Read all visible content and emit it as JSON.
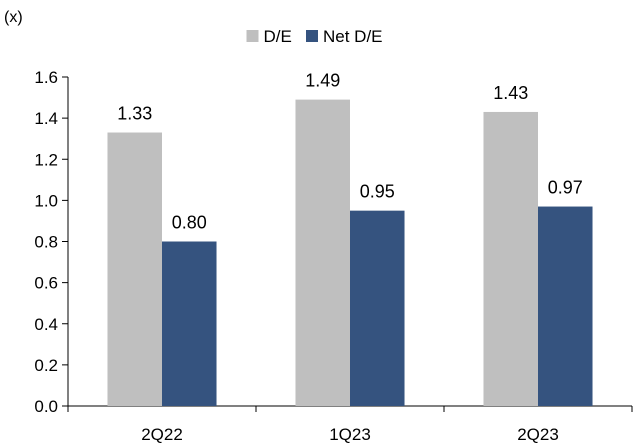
{
  "chart_data": {
    "type": "bar",
    "unit_label": "(x)",
    "categories": [
      "2Q22",
      "1Q23",
      "2Q23"
    ],
    "series": [
      {
        "name": "D/E",
        "values": [
          1.33,
          1.49,
          1.43
        ],
        "labels": [
          "1.33",
          "1.49",
          "1.43"
        ],
        "color": "#bfbfbf"
      },
      {
        "name": "Net D/E",
        "values": [
          0.8,
          0.95,
          0.97
        ],
        "labels": [
          "0.80",
          "0.95",
          "0.97"
        ],
        "color": "#35537f"
      }
    ],
    "ylim": [
      0,
      1.6
    ],
    "yticks": [
      0,
      0.2,
      0.4,
      0.6,
      0.8,
      1.0,
      1.2,
      1.4,
      1.6
    ],
    "ytick_labels": [
      "0.0",
      "0.2",
      "0.4",
      "0.6",
      "0.8",
      "1.0",
      "1.2",
      "1.4",
      "1.6"
    ],
    "grid": false,
    "legend_position": "top-center"
  }
}
